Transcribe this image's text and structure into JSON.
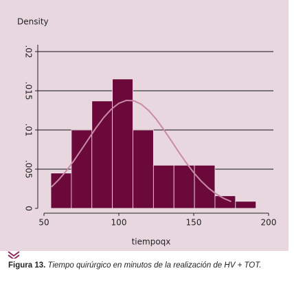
{
  "chart_data": {
    "type": "histogram",
    "ylabel": "Density",
    "xlabel": "tiempoqx",
    "caption_label": "Figura 13.",
    "caption": "Tiempo quirúrgico en minutos de la realización de HV + TOT.",
    "bins": [
      54.6,
      68.3,
      82,
      95.7,
      109.4,
      123.1,
      136.8,
      150.5,
      164.2,
      177.9,
      191.6
    ],
    "values": [
      0.0045,
      0.01,
      0.0137,
      0.0165,
      0.01,
      0.0055,
      0.0055,
      0.0055,
      0.0016,
      0.0009
    ],
    "color": "#6b0a3a",
    "line": {
      "color": "#c98aa6",
      "x": [
        55,
        60,
        65,
        70,
        75,
        80,
        85,
        90,
        95,
        100,
        105,
        110,
        115,
        120,
        125,
        130,
        135,
        140,
        145,
        150,
        155,
        160,
        165,
        170,
        175
      ],
      "values": [
        0.00273,
        0.00368,
        0.0048,
        0.00608,
        0.00748,
        0.00892,
        0.01033,
        0.01161,
        0.01266,
        0.0134,
        0.01377,
        0.01373,
        0.01328,
        0.01247,
        0.01137,
        0.01005,
        0.00863,
        0.00719,
        0.00581,
        0.00456,
        0.00347,
        0.00257,
        0.00184,
        0.00128,
        0.00087
      ]
    },
    "xlim": [
      50,
      200
    ],
    "xticks": [
      50,
      100,
      150,
      200
    ],
    "ylim": [
      0,
      0.02
    ],
    "yticks": [
      0,
      {
        "value": 0.005,
        "label": ".005"
      },
      {
        "value": 0.01,
        "label": ".01"
      },
      {
        "value": 0.015,
        "label": ".015"
      },
      {
        "value": 0.02,
        "label": ".02"
      }
    ],
    "grid": true
  }
}
